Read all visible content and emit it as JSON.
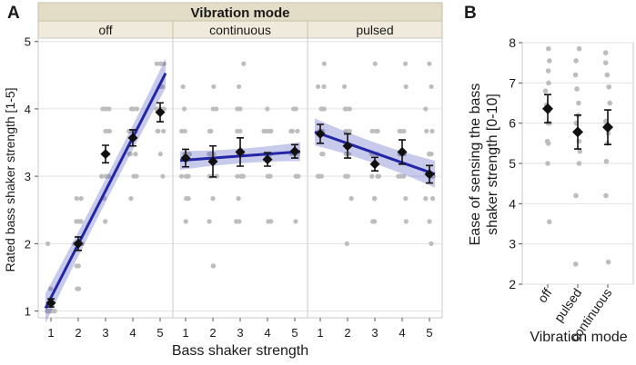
{
  "chart_data": [
    {
      "panel_label": "A",
      "type": "scatter",
      "title": "Vibration mode",
      "xlabel": "Bass shaker strength",
      "ylabel": "Rated bass shaker strength [1-5]",
      "x_ticks": [
        "1",
        "2",
        "3",
        "4",
        "5"
      ],
      "y_ticks": [
        1,
        2,
        3,
        4,
        5
      ],
      "ylim": [
        0.9,
        5.05
      ],
      "xlim": [
        0.5,
        5.5
      ],
      "facets": [
        {
          "name": "off",
          "means": [
            1.12,
            2.0,
            3.33,
            3.57,
            3.95
          ],
          "err": [
            0.06,
            0.1,
            0.13,
            0.12,
            0.14
          ],
          "fit": {
            "y_at_1": 1.2,
            "y_at_5": 4.37,
            "band": 0.22
          },
          "raw": [
            [
              1,
              1,
              1,
              1,
              1,
              1,
              1,
              1,
              1,
              1,
              1,
              1,
              1,
              1,
              1,
              1,
              1,
              1.33,
              1.33,
              2
            ],
            [
              1.33,
              1.33,
              1.67,
              1.67,
              2,
              2,
              2,
              2,
              2,
              2,
              2,
              2,
              2,
              2,
              2.33,
              2.33,
              2.33,
              2.67,
              2.67
            ],
            [
              2.33,
              2.67,
              3,
              3,
              3,
              3,
              3,
              3.33,
              3.33,
              3.33,
              3.33,
              3.67,
              3.67,
              3.67,
              4,
              4,
              4,
              4
            ],
            [
              2.67,
              3,
              3,
              3.33,
              3.33,
              3.33,
              3.67,
              3.67,
              3.67,
              3.67,
              3.67,
              3.67,
              4,
              4,
              4,
              4,
              4
            ],
            [
              3,
              3.33,
              3.67,
              3.67,
              3.67,
              4,
              4,
              4,
              4,
              4,
              4,
              4,
              4.33,
              4.33,
              4.33,
              4.67,
              4.67,
              4.67,
              4.67
            ]
          ]
        },
        {
          "name": "continuous",
          "means": [
            3.27,
            3.22,
            3.36,
            3.25,
            3.37
          ],
          "err": [
            0.13,
            0.23,
            0.21,
            0.1,
            0.1
          ],
          "fit": {
            "y_at_1": 3.24,
            "y_at_5": 3.36,
            "band": 0.14
          },
          "raw": [
            [
              2.33,
              2.67,
              2.67,
              3,
              3,
              3,
              3,
              3,
              3.33,
              3.33,
              3.33,
              3.33,
              3.33,
              3.67,
              3.67,
              4,
              4.33
            ],
            [
              1.67,
              1.67,
              2.33,
              2.67,
              3,
              3,
              3,
              3,
              3.33,
              3.33,
              3.33,
              3.33,
              3.67,
              3.67,
              4,
              4,
              4.33
            ],
            [
              2.33,
              2.33,
              2.67,
              3,
              3,
              3,
              3,
              3.33,
              3.33,
              3.33,
              3.67,
              3.67,
              4,
              4,
              4,
              4.33,
              4.67
            ],
            [
              2.33,
              2.33,
              3,
              3,
              3,
              3,
              3.33,
              3.33,
              3.33,
              3.33,
              3.33,
              3.33,
              3.67,
              3.67,
              3.67,
              3.67,
              4
            ],
            [
              2.33,
              3,
              3,
              3,
              3,
              3.33,
              3.33,
              3.33,
              3.33,
              3.33,
              3.67,
              3.67,
              3.67,
              3.67,
              4,
              4
            ]
          ]
        },
        {
          "name": "pulsed",
          "means": [
            3.63,
            3.45,
            3.18,
            3.36,
            3.03
          ],
          "err": [
            0.14,
            0.18,
            0.1,
            0.18,
            0.13
          ],
          "fit": {
            "y_at_1": 3.63,
            "y_at_5": 3.06,
            "band": 0.2
          },
          "raw": [
            [
              3,
              3,
              3,
              3,
              3.33,
              3.33,
              3.67,
              3.67,
              3.67,
              3.67,
              4,
              4,
              4,
              4,
              4.33,
              4.33,
              4.67
            ],
            [
              2,
              2.67,
              3,
              3,
              3,
              3.33,
              3.33,
              3.33,
              3.33,
              3.67,
              3.67,
              3.67,
              4,
              4,
              4,
              4.33
            ],
            [
              2.33,
              2.33,
              2.67,
              2.67,
              2.67,
              3,
              3,
              3,
              3,
              3.33,
              3.33,
              3.33,
              3.33,
              3.67,
              3.67,
              3.67,
              4.67
            ],
            [
              2.33,
              2.67,
              3,
              3,
              3,
              3,
              3.33,
              3.33,
              3.33,
              3.33,
              3.33,
              3.67,
              3.67,
              3.67,
              4.33,
              4.67
            ],
            [
              2,
              2.33,
              2.67,
              2.67,
              3,
              3,
              3,
              3,
              3.33,
              3.33,
              3.33,
              3.67,
              3.67,
              4,
              4.33,
              4.67
            ]
          ]
        }
      ]
    },
    {
      "panel_label": "B",
      "type": "scatter",
      "xlabel": "Vibration mode",
      "ylabel": "Ease of sensing the bass shaker strength [0-10]",
      "ylabel_lines": [
        "Ease of sensing the bass",
        "shaker strength [0-10]"
      ],
      "categories": [
        "off",
        "pulsed",
        "continuous"
      ],
      "y_ticks": [
        2,
        3,
        4,
        5,
        6,
        7,
        8
      ],
      "ylim": [
        2,
        8
      ],
      "means": [
        6.36,
        5.78,
        5.9
      ],
      "err": [
        0.35,
        0.42,
        0.43
      ],
      "raw": [
        [
          3.55,
          5,
          5.5,
          5.55,
          6,
          6,
          6.3,
          6.45,
          6.8,
          7,
          7.3,
          7.55,
          7.85
        ],
        [
          2.5,
          4.2,
          5,
          5.3,
          5.55,
          5.8,
          6,
          6.2,
          6.5,
          6.85,
          7.2,
          7.55,
          7.85
        ],
        [
          2.55,
          4.2,
          5.05,
          5.5,
          5.75,
          6,
          6.05,
          6.5,
          6.9,
          7.2,
          7.5,
          7.75
        ]
      ]
    }
  ]
}
